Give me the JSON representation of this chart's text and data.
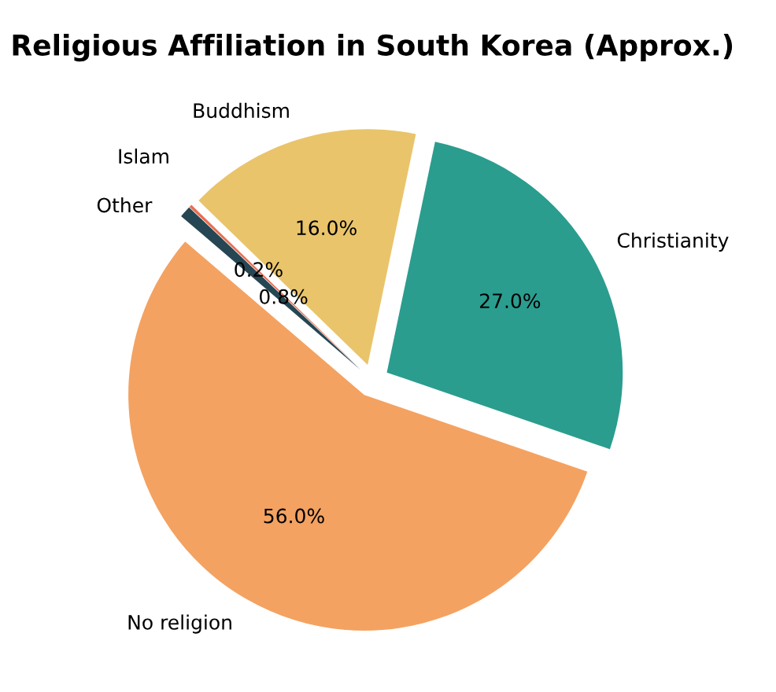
{
  "chart_data": {
    "type": "pie",
    "title": "Religious Affiliation in South Korea (Approx.)",
    "categories": [
      "Christianity",
      "Buddhism",
      "Islam",
      "Other",
      "No religion"
    ],
    "values": [
      27,
      16,
      0.2,
      0.8,
      56
    ],
    "value_labels": [
      "27.0%",
      "16.0%",
      "0.2%",
      "0.8%",
      "56.0%"
    ],
    "colors": [
      "#2a9d8f",
      "#e9c46a",
      "#e76f51",
      "#264653",
      "#f4a261"
    ]
  }
}
